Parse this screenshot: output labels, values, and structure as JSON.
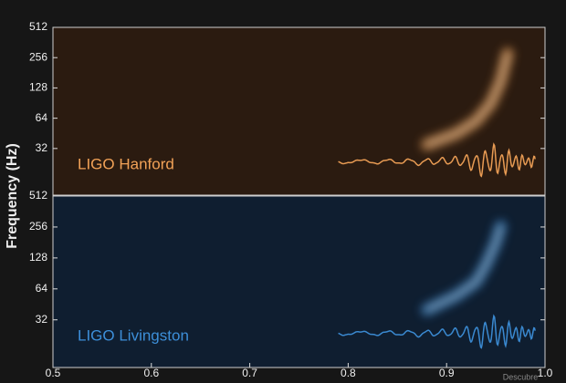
{
  "chart_data": [
    {
      "type": "spectrogram",
      "title": "LIGO Hanford",
      "background": "#2b1b10",
      "color": "#f2a257",
      "log_scale": true,
      "xlim": [
        0.5,
        1.0
      ],
      "ylim": [
        11,
        512
      ],
      "yticks": [
        32,
        64,
        128,
        256,
        512
      ],
      "track": {
        "x": [
          0.88,
          0.91,
          0.93,
          0.945,
          0.955,
          0.962
        ],
        "y": [
          35,
          45,
          60,
          90,
          150,
          280
        ]
      }
    },
    {
      "type": "spectrogram",
      "title": "LIGO Livingston",
      "background": "#0f1e30",
      "color": "#3d8fd9",
      "log_scale": true,
      "xlim": [
        0.5,
        1.0
      ],
      "ylim": [
        11,
        512
      ],
      "yticks": [
        32,
        64,
        128,
        256,
        512
      ],
      "xticks": [
        0.5,
        0.6,
        0.7,
        0.8,
        0.9,
        {
          "value": 1,
          "label": "1.0"
        }
      ],
      "track": {
        "x": [
          0.88,
          0.91,
          0.93,
          0.94,
          0.95,
          0.955
        ],
        "y": [
          40,
          55,
          75,
          110,
          180,
          260
        ]
      }
    }
  ],
  "y_label": "Frequency (Hz)",
  "watermark": "Descubre"
}
